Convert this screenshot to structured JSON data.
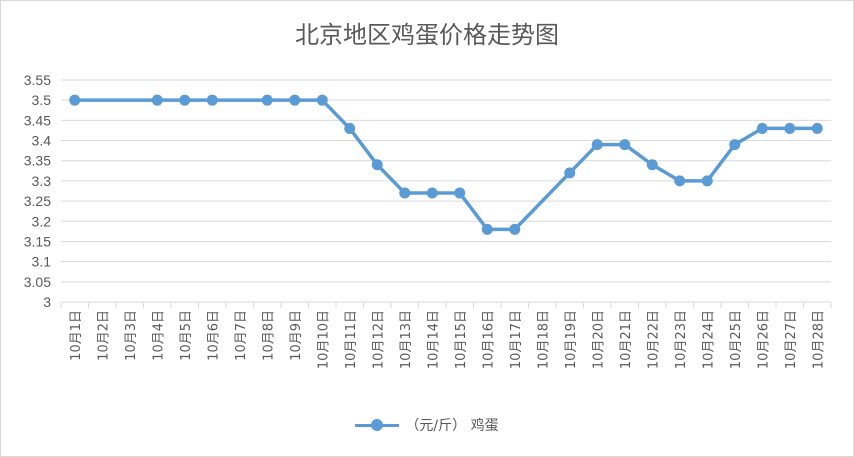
{
  "chart_data": {
    "type": "line",
    "title": "北京地区鸡蛋价格走势图",
    "categories": [
      "10月1日",
      "10月2日",
      "10月3日",
      "10月4日",
      "10月5日",
      "10月6日",
      "10月7日",
      "10月8日",
      "10月9日",
      "10月10日",
      "10月11日",
      "10月12日",
      "10月13日",
      "10月14日",
      "10月15日",
      "10月16日",
      "10月17日",
      "10月18日",
      "10月19日",
      "10月20日",
      "10月21日",
      "10月22日",
      "10月23日",
      "10月24日",
      "10月25日",
      "10月26日",
      "10月27日",
      "10月28日"
    ],
    "series": [
      {
        "name": "（元/斤） 鸡蛋",
        "color": "#5b9bd5",
        "values": [
          3.5,
          null,
          null,
          3.5,
          3.5,
          3.5,
          null,
          3.5,
          3.5,
          3.5,
          3.43,
          3.34,
          3.27,
          3.27,
          3.27,
          3.18,
          3.18,
          null,
          3.32,
          3.39,
          3.39,
          3.34,
          3.3,
          3.3,
          3.39,
          3.43,
          3.43,
          3.43
        ]
      }
    ],
    "ylim": [
      3,
      3.55
    ],
    "yticks": [
      "3",
      "3.05",
      "3.1",
      "3.15",
      "3.2",
      "3.25",
      "3.3",
      "3.35",
      "3.4",
      "3.45",
      "3.5",
      "3.55"
    ],
    "grid": true,
    "legend": "bottom"
  }
}
